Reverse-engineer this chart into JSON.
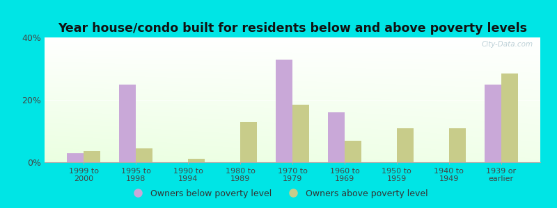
{
  "categories": [
    "1999 to\n2000",
    "1995 to\n1998",
    "1990 to\n1994",
    "1980 to\n1989",
    "1970 to\n1979",
    "1960 to\n1969",
    "1950 to\n1959",
    "1940 to\n1949",
    "1939 or\nearlier"
  ],
  "below_poverty": [
    3.0,
    25.0,
    0.0,
    0.0,
    33.0,
    16.0,
    0.0,
    0.0,
    25.0
  ],
  "above_poverty": [
    3.5,
    4.5,
    1.2,
    13.0,
    18.5,
    7.0,
    11.0,
    11.0,
    28.5
  ],
  "below_color": "#c9a8d8",
  "above_color": "#c8cc8a",
  "title": "Year house/condo built for residents below and above poverty levels",
  "ylim": [
    0,
    40
  ],
  "yticks": [
    0,
    20,
    40
  ],
  "ytick_labels": [
    "0%",
    "20%",
    "40%"
  ],
  "bg_color": "#00e5e5",
  "legend_below": "Owners below poverty level",
  "legend_above": "Owners above poverty level",
  "title_fontsize": 12.5,
  "watermark": "City-Data.com"
}
